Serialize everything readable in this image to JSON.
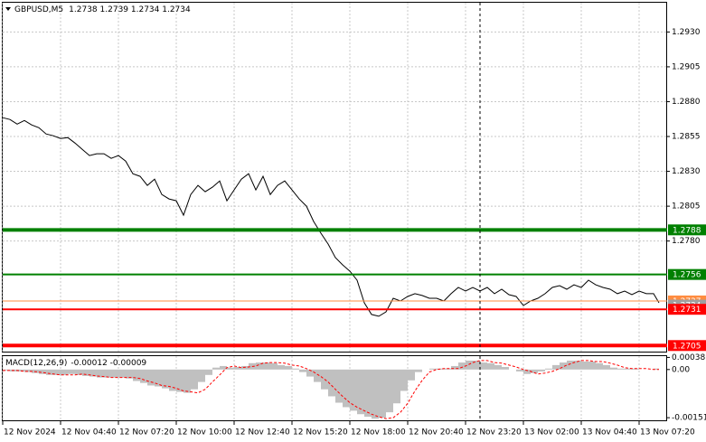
{
  "chart_data": [
    {
      "type": "line",
      "title": "GBPUSD,M5",
      "subtitle": "1.2738 1.2739 1.2734 1.2734",
      "x": [
        0,
        4,
        8,
        12,
        16,
        20,
        24,
        28,
        32,
        36,
        40,
        44,
        48,
        52,
        56,
        60,
        64,
        68,
        72,
        76,
        80,
        84,
        88,
        92,
        96,
        100,
        104,
        108,
        112,
        116,
        120,
        124,
        128,
        132,
        136,
        140,
        144,
        148,
        152,
        156,
        160,
        164,
        168,
        172,
        176,
        180,
        184,
        188,
        192,
        196,
        200,
        204,
        208,
        212,
        216,
        220,
        224,
        228,
        232,
        236,
        240,
        244,
        248,
        252,
        256,
        260,
        264,
        268,
        272,
        276,
        280,
        284,
        288,
        292,
        296,
        300,
        304,
        308,
        312,
        316,
        320,
        324,
        328,
        332,
        336,
        340,
        344,
        348,
        352,
        356,
        360,
        363
      ],
      "series": [
        {
          "color": "#000000",
          "values": [
            1.28685,
            1.28672,
            1.28639,
            1.28665,
            1.28633,
            1.28613,
            1.28568,
            1.28555,
            1.28536,
            1.28542,
            1.28503,
            1.28458,
            1.28413,
            1.28426,
            1.28426,
            1.28393,
            1.28413,
            1.28374,
            1.28283,
            1.28264,
            1.28199,
            1.28244,
            1.28134,
            1.28102,
            1.28089,
            1.27985,
            1.28134,
            1.28199,
            1.28154,
            1.28186,
            1.28231,
            1.28089,
            1.28167,
            1.28244,
            1.28283,
            1.28167,
            1.28264,
            1.28134,
            1.28199,
            1.28231,
            1.28167,
            1.28102,
            1.2805,
            1.2794,
            1.27856,
            1.27778,
            1.27681,
            1.27629,
            1.27584,
            1.27519,
            1.27357,
            1.27273,
            1.2726,
            1.27292,
            1.27389,
            1.2737,
            1.27402,
            1.27422,
            1.27409,
            1.27389,
            1.27389,
            1.2737,
            1.27422,
            1.27467,
            1.27441,
            1.27467,
            1.27441,
            1.27467,
            1.27422,
            1.27454,
            1.27415,
            1.27402,
            1.27337,
            1.2737,
            1.27389,
            1.27422,
            1.27467,
            1.2748,
            1.27454,
            1.27486,
            1.27467,
            1.27519,
            1.27486,
            1.27467,
            1.27454,
            1.27422,
            1.27441,
            1.27415,
            1.27441,
            1.27422,
            1.27422,
            1.27357
          ]
        }
      ],
      "xlim": [
        0,
        367.5
      ],
      "ylim": [
        1.27,
        1.2951
      ],
      "yticks": [
        {
          "value": 1.293,
          "label": "1.2930"
        },
        1.2905,
        {
          "value": 1.288,
          "label": "1.2880"
        },
        1.2855,
        {
          "value": 1.283,
          "label": "1.2830"
        },
        1.2805,
        {
          "value": 1.278,
          "label": "1.2780"
        }
      ],
      "xticks": [
        {
          "value": 0,
          "label": "12 Nov 2024"
        },
        {
          "value": 32,
          "label": "12 Nov 04:40"
        },
        {
          "value": 64,
          "label": "12 Nov 07:20"
        },
        {
          "value": 96,
          "label": "12 Nov 10:00"
        },
        {
          "value": 128,
          "label": "12 Nov 12:40"
        },
        {
          "value": 160,
          "label": "12 Nov 15:20"
        },
        {
          "value": 192,
          "label": "12 Nov 18:00"
        },
        {
          "value": 224,
          "label": "12 Nov 20:40"
        },
        {
          "value": 256,
          "label": "12 Nov 23:20"
        },
        {
          "value": 288,
          "label": "13 Nov 02:00"
        },
        {
          "value": 320,
          "label": "13 Nov 04:40"
        },
        {
          "value": 352,
          "label": "13 Nov 07:20"
        }
      ],
      "grid": true,
      "levels": [
        {
          "value": 1.2788,
          "color": "#008000",
          "thick": true
        },
        {
          "value": 1.2756,
          "color": "#008000",
          "thick": false
        },
        {
          "value": 1.2737,
          "color": "#ff8c40",
          "thick": false
        },
        {
          "value": 1.2734,
          "color": "#a0a0a0",
          "thick": false,
          "label_only": true
        },
        {
          "value": 1.2731,
          "color": "#ff0000",
          "thick": false
        },
        {
          "value": 1.2705,
          "color": "#ff0000",
          "thick": true
        }
      ],
      "separator_x": 264
    },
    {
      "type": "macd",
      "title": "MACD(12,26,9)",
      "subtitle": "-0.00012 -0.00009",
      "x": [
        0,
        4,
        8,
        12,
        16,
        20,
        24,
        28,
        32,
        36,
        40,
        44,
        48,
        52,
        56,
        60,
        64,
        68,
        72,
        76,
        80,
        84,
        88,
        92,
        96,
        100,
        104,
        108,
        112,
        116,
        120,
        124,
        128,
        132,
        136,
        140,
        144,
        148,
        152,
        156,
        160,
        164,
        168,
        172,
        176,
        180,
        184,
        188,
        192,
        196,
        200,
        204,
        208,
        212,
        216,
        220,
        224,
        228,
        232,
        236,
        240,
        244,
        248,
        252,
        256,
        260,
        264,
        268,
        272,
        276,
        280,
        284,
        288,
        292,
        296,
        300,
        304,
        308,
        312,
        316,
        320,
        324,
        328,
        332,
        336,
        340,
        344,
        348,
        352,
        356,
        360,
        363
      ],
      "series": [
        {
          "kind": "histogram",
          "color": "#c0c0c0",
          "values": [
            -3e-05,
            -6e-05,
            -6e-05,
            -8e-05,
            -0.00011,
            -0.00014,
            -0.00017,
            -0.00017,
            -0.00017,
            -0.00014,
            -0.00017,
            -0.0002,
            -0.00022,
            -0.00025,
            -0.00025,
            -0.00025,
            -0.00025,
            -0.00028,
            -0.00036,
            -0.00042,
            -0.0005,
            -0.00053,
            -0.00059,
            -0.00067,
            -0.0007,
            -0.00073,
            -0.00062,
            -0.00039,
            -0.00017,
            6e-05,
            0.00011,
            6e-05,
            8e-05,
            0.00011,
            0.0002,
            0.00022,
            0.00022,
            0.0002,
            0.00014,
            0.00011,
            3e-05,
            -8e-05,
            -0.00022,
            -0.00039,
            -0.00062,
            -0.00084,
            -0.00104,
            -0.00118,
            -0.00129,
            -0.0014,
            -0.00148,
            -0.00154,
            -0.00151,
            -0.00134,
            -0.00106,
            -0.00067,
            -0.00034,
            -8e-05,
            0,
            3e-05,
            3e-05,
            3e-05,
            0.00011,
            0.00022,
            0.00028,
            0.00028,
            0.00022,
            0.0002,
            0.00014,
            8e-05,
            0,
            -6e-05,
            -0.00014,
            -0.00011,
            -6e-05,
            3e-05,
            0.00014,
            0.00022,
            0.00028,
            0.00028,
            0.00025,
            0.00025,
            0.0002,
            0.00014,
            6e-05,
            3e-05,
            3e-05,
            3e-05,
            0,
            0,
            3e-05,
            0
          ]
        },
        {
          "kind": "line",
          "dashed": true,
          "color": "#ff0000",
          "values": [
            -3e-05,
            -3e-05,
            -3e-05,
            -6e-05,
            -6e-05,
            -8e-05,
            -0.00011,
            -0.00014,
            -0.00017,
            -0.00017,
            -0.00017,
            -0.00014,
            -0.00017,
            -0.0002,
            -0.00022,
            -0.00025,
            -0.00025,
            -0.00025,
            -0.00025,
            -0.00028,
            -0.00036,
            -0.00042,
            -0.0005,
            -0.00053,
            -0.00059,
            -0.00067,
            -0.0007,
            -0.00073,
            -0.00062,
            -0.00039,
            -0.00017,
            6e-05,
            0.00011,
            6e-05,
            8e-05,
            0.00011,
            0.0002,
            0.00022,
            0.00022,
            0.0002,
            0.00014,
            0.00011,
            3e-05,
            -8e-05,
            -0.00022,
            -0.00039,
            -0.00062,
            -0.00084,
            -0.00104,
            -0.00118,
            -0.00129,
            -0.0014,
            -0.00148,
            -0.00154,
            -0.00151,
            -0.00134,
            -0.00106,
            -0.00067,
            -0.00034,
            -8e-05,
            0,
            3e-05,
            3e-05,
            3e-05,
            0.00011,
            0.00022,
            0.00028,
            0.00028,
            0.00022,
            0.0002,
            0.00014,
            8e-05,
            0,
            -6e-05,
            -0.00014,
            -0.00011,
            -6e-05,
            3e-05,
            0.00014,
            0.00022,
            0.00028,
            0.00028,
            0.00025,
            0.00025,
            0.0002,
            0.00014,
            6e-05,
            3e-05,
            3e-05,
            3e-05,
            0,
            0
          ]
        }
      ],
      "xlim": [
        0,
        367.5
      ],
      "ylim": [
        -0.00162,
        0.00042
      ],
      "yticks": [
        0.00038,
        {
          "value": 0,
          "label": "0.00"
        },
        -0.00151
      ]
    }
  ]
}
